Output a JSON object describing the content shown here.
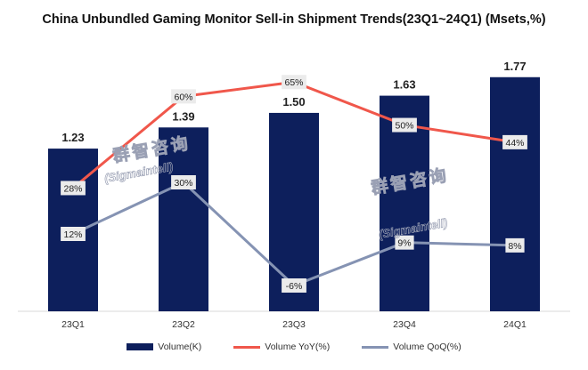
{
  "chart_data": {
    "type": "bar",
    "title": "China Unbundled Gaming Monitor Sell-in Shipment Trends(23Q1~24Q1) (Msets,%)",
    "categories": [
      "23Q1",
      "23Q2",
      "23Q3",
      "23Q4",
      "24Q1"
    ],
    "series": [
      {
        "name": "Volume(K)",
        "type": "bar",
        "values": [
          1.23,
          1.39,
          1.5,
          1.63,
          1.77
        ],
        "labels": [
          "1.23",
          "1.39",
          "1.50",
          "1.63",
          "1.77"
        ]
      },
      {
        "name": "Volume YoY(%)",
        "type": "line",
        "values": [
          28,
          60,
          65,
          50,
          44
        ],
        "labels": [
          "28%",
          "60%",
          "65%",
          "50%",
          "44%"
        ]
      },
      {
        "name": "Volume QoQ(%)",
        "type": "line",
        "values": [
          12,
          30,
          -6,
          9,
          8
        ],
        "labels": [
          "12%",
          "30%",
          "-6%",
          "9%",
          "8%"
        ]
      }
    ],
    "ylim_bar": [
      0,
      1.95
    ],
    "ylim_line": [
      -15,
      75
    ],
    "grid": false,
    "legend": "bottom"
  },
  "watermark": {
    "cn": "群智咨询",
    "en": "(Sigmaintell)"
  },
  "colors": {
    "bar": "#0d1f5c",
    "yoy": "#f0574b",
    "qoq": "#8593b3",
    "label_bg": "#ebebeb",
    "axis": "#d9d9d9"
  }
}
